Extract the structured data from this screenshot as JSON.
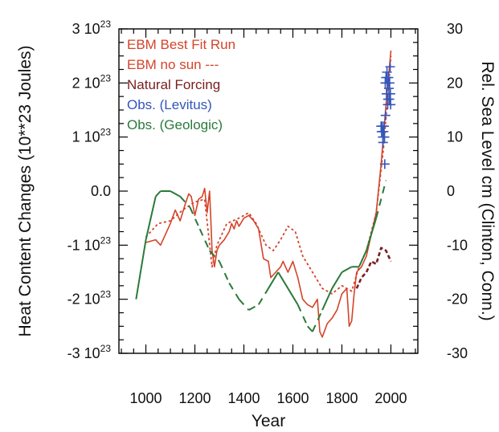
{
  "chart_data": {
    "type": "line",
    "xlabel": "Year",
    "ylabel_left": "Heat Content Changes (10**23 Joules)",
    "ylabel_right": "Rel. Sea Level cm (Clinton, Conn.)",
    "xlim": [
      890,
      2110
    ],
    "ylim_left": [
      -3,
      3
    ],
    "ylim_right": [
      -30,
      30
    ],
    "grid": false,
    "legend_position": "top-left",
    "x_ticks": [
      {
        "v": 1000,
        "label": "1000"
      },
      {
        "v": 1200,
        "label": "1200"
      },
      {
        "v": 1400,
        "label": "1400"
      },
      {
        "v": 1600,
        "label": "1600"
      },
      {
        "v": 1800,
        "label": "1800"
      },
      {
        "v": 2000,
        "label": "2000"
      }
    ],
    "y_ticks_left": [
      {
        "v": 3,
        "m": "3 10",
        "e": "23"
      },
      {
        "v": 2,
        "m": "2 10",
        "e": "23"
      },
      {
        "v": 1,
        "m": "1 10",
        "e": "23"
      },
      {
        "v": 0,
        "m": "0.0",
        "e": ""
      },
      {
        "v": -1,
        "m": "-1 10",
        "e": "23"
      },
      {
        "v": -2,
        "m": "-2 10",
        "e": "23"
      },
      {
        "v": -3,
        "m": "-3 10",
        "e": "23"
      }
    ],
    "y_ticks_right": [
      {
        "v": 30,
        "label": "30"
      },
      {
        "v": 20,
        "label": "20"
      },
      {
        "v": 10,
        "label": "10"
      },
      {
        "v": 0,
        "label": "0"
      },
      {
        "v": -10,
        "label": "-10"
      },
      {
        "v": -20,
        "label": "-20"
      },
      {
        "v": -30,
        "label": "-30"
      }
    ],
    "legend": [
      {
        "label": "EBM Best Fit Run",
        "color": "#d4442a"
      },
      {
        "label": "EBM no sun ---",
        "color": "#d4442a"
      },
      {
        "label": "Natural Forcing",
        "color": "#7a2020"
      },
      {
        "label": "Obs. (Levitus)",
        "color": "#3355bb"
      },
      {
        "label": "Obs. (Geologic)",
        "color": "#2a7a3a"
      }
    ],
    "series": [
      {
        "name": "EBM Best Fit Run",
        "color": "#d4442a",
        "style": "solid",
        "axis": "left",
        "points": [
          [
            1000,
            -0.95
          ],
          [
            1040,
            -0.9
          ],
          [
            1060,
            -1.0
          ],
          [
            1080,
            -0.8
          ],
          [
            1100,
            -0.6
          ],
          [
            1120,
            -0.35
          ],
          [
            1140,
            -0.55
          ],
          [
            1160,
            -0.25
          ],
          [
            1175,
            -0.05
          ],
          [
            1185,
            -0.1
          ],
          [
            1200,
            -0.45
          ],
          [
            1215,
            -0.15
          ],
          [
            1230,
            -0.1
          ],
          [
            1240,
            0.05
          ],
          [
            1250,
            -0.4
          ],
          [
            1260,
            0.0
          ],
          [
            1265,
            -0.5
          ],
          [
            1270,
            -1.1
          ],
          [
            1280,
            -1.4
          ],
          [
            1290,
            -1.1
          ],
          [
            1300,
            -1.0
          ],
          [
            1320,
            -0.9
          ],
          [
            1340,
            -0.75
          ],
          [
            1350,
            -0.6
          ],
          [
            1360,
            -0.7
          ],
          [
            1370,
            -0.55
          ],
          [
            1380,
            -0.65
          ],
          [
            1400,
            -0.5
          ],
          [
            1420,
            -0.45
          ],
          [
            1440,
            -0.55
          ],
          [
            1460,
            -0.7
          ],
          [
            1480,
            -1.25
          ],
          [
            1500,
            -1.3
          ],
          [
            1510,
            -1.6
          ],
          [
            1530,
            -1.5
          ],
          [
            1550,
            -1.4
          ],
          [
            1560,
            -1.3
          ],
          [
            1570,
            -1.4
          ],
          [
            1580,
            -1.5
          ],
          [
            1600,
            -1.3
          ],
          [
            1620,
            -1.6
          ],
          [
            1640,
            -2.0
          ],
          [
            1660,
            -2.1
          ],
          [
            1680,
            -2.15
          ],
          [
            1700,
            -2.0
          ],
          [
            1710,
            -2.6
          ],
          [
            1720,
            -2.7
          ],
          [
            1740,
            -2.45
          ],
          [
            1760,
            -2.35
          ],
          [
            1780,
            -2.2
          ],
          [
            1800,
            -1.9
          ],
          [
            1820,
            -1.8
          ],
          [
            1830,
            -2.5
          ],
          [
            1840,
            -2.4
          ],
          [
            1850,
            -1.9
          ],
          [
            1860,
            -1.5
          ],
          [
            1880,
            -1.4
          ],
          [
            1900,
            -1.2
          ],
          [
            1920,
            -0.8
          ],
          [
            1940,
            -0.4
          ],
          [
            1960,
            0.5
          ],
          [
            1980,
            1.6
          ],
          [
            2000,
            2.6
          ]
        ]
      },
      {
        "name": "EBM no sun ---",
        "color": "#d4442a",
        "style": "dashed",
        "axis": "left",
        "points": [
          [
            1000,
            -0.85
          ],
          [
            1050,
            -0.6
          ],
          [
            1100,
            -0.55
          ],
          [
            1150,
            -0.35
          ],
          [
            1200,
            -0.2
          ],
          [
            1240,
            -0.15
          ],
          [
            1270,
            -1.4
          ],
          [
            1290,
            -1.0
          ],
          [
            1330,
            -0.6
          ],
          [
            1380,
            -0.5
          ],
          [
            1420,
            -0.4
          ],
          [
            1450,
            -0.6
          ],
          [
            1490,
            -1.0
          ],
          [
            1520,
            -1.1
          ],
          [
            1550,
            -0.9
          ],
          [
            1580,
            -0.65
          ],
          [
            1610,
            -0.75
          ],
          [
            1640,
            -1.2
          ],
          [
            1680,
            -1.5
          ],
          [
            1720,
            -1.8
          ],
          [
            1760,
            -1.9
          ],
          [
            1800,
            -1.75
          ],
          [
            1840,
            -1.85
          ],
          [
            1870,
            -1.4
          ],
          [
            1900,
            -1.1
          ],
          [
            1940,
            -0.4
          ],
          [
            1970,
            0.8
          ],
          [
            2000,
            2.5
          ]
        ]
      },
      {
        "name": "Natural Forcing",
        "color": "#7a2020",
        "style": "dashed",
        "axis": "left",
        "points": [
          [
            1860,
            -1.8
          ],
          [
            1880,
            -1.6
          ],
          [
            1900,
            -1.5
          ],
          [
            1920,
            -1.3
          ],
          [
            1940,
            -1.35
          ],
          [
            1960,
            -1.05
          ],
          [
            1980,
            -1.1
          ],
          [
            2000,
            -1.3
          ]
        ]
      },
      {
        "name": "Obs. (Geologic)",
        "color": "#2a7a3a",
        "style": "mixed",
        "axis": "right",
        "solid_segments": [
          [
            0,
            5
          ],
          [
            14,
            17
          ],
          [
            20,
            26
          ]
        ],
        "points": [
          [
            960,
            -20
          ],
          [
            1000,
            -9
          ],
          [
            1040,
            -1
          ],
          [
            1060,
            0
          ],
          [
            1100,
            0
          ],
          [
            1140,
            -1
          ],
          [
            1180,
            -3
          ],
          [
            1220,
            -7
          ],
          [
            1260,
            -11
          ],
          [
            1300,
            -13
          ],
          [
            1340,
            -17
          ],
          [
            1380,
            -20
          ],
          [
            1420,
            -22
          ],
          [
            1460,
            -21
          ],
          [
            1500,
            -18
          ],
          [
            1540,
            -15
          ],
          [
            1580,
            -18
          ],
          [
            1620,
            -21
          ],
          [
            1660,
            -25
          ],
          [
            1680,
            -26
          ],
          [
            1720,
            -22
          ],
          [
            1760,
            -18
          ],
          [
            1800,
            -15
          ],
          [
            1840,
            -14
          ],
          [
            1870,
            -14
          ],
          [
            1900,
            -11
          ],
          [
            1940,
            -5
          ],
          [
            1980,
            2
          ]
        ]
      },
      {
        "name": "Obs. (Levitus)",
        "color": "#3355bb",
        "style": "markers",
        "axis": "right",
        "points": [
          [
            1960,
            12
          ],
          [
            1962,
            11
          ],
          [
            1965,
            12
          ],
          [
            1967,
            10
          ],
          [
            1968,
            9
          ],
          [
            1970,
            11
          ],
          [
            1972,
            12
          ],
          [
            1974,
            10
          ],
          [
            1975,
            5
          ],
          [
            1977,
            20
          ],
          [
            1978,
            14
          ],
          [
            1980,
            21
          ],
          [
            1982,
            18
          ],
          [
            1984,
            22
          ],
          [
            1985,
            20
          ],
          [
            1987,
            16
          ],
          [
            1988,
            17
          ],
          [
            1990,
            21
          ],
          [
            1992,
            19
          ],
          [
            1994,
            17
          ],
          [
            1995,
            20
          ],
          [
            1997,
            23
          ],
          [
            1998,
            18
          ],
          [
            1999,
            16
          ]
        ]
      }
    ]
  }
}
